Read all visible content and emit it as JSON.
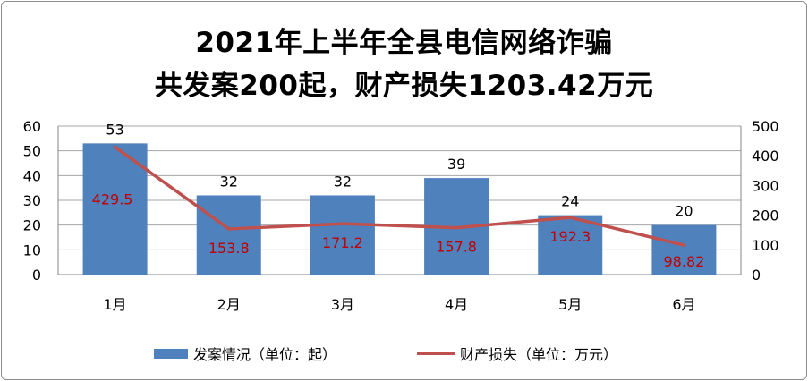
{
  "title_line1": "2021年上半年全县电信网络诈骗",
  "title_line2": "共发案200起，财产损失1203.42万元",
  "chart_data": {
    "type": "bar",
    "categories": [
      "1月",
      "2月",
      "3月",
      "4月",
      "5月",
      "6月"
    ],
    "series": [
      {
        "name": "发案情况（单位：起）",
        "type": "bar",
        "axis": "left",
        "values": [
          53,
          32,
          32,
          39,
          24,
          20
        ],
        "labels": [
          "53",
          "32",
          "32",
          "39",
          "24",
          "20"
        ],
        "color": "#4f81bd"
      },
      {
        "name": "财产损失（单位：万元）",
        "type": "line",
        "axis": "right",
        "values": [
          429.5,
          153.8,
          171.2,
          157.8,
          192.3,
          98.82
        ],
        "labels": [
          "429.5",
          "153.8",
          "171.2",
          "157.8",
          "192.3",
          "98.82"
        ],
        "color": "#c0504d"
      }
    ],
    "y_left": {
      "lim": [
        0,
        60
      ],
      "ticks": [
        "0",
        "10",
        "20",
        "30",
        "40",
        "50",
        "60"
      ]
    },
    "y_right": {
      "lim": [
        0,
        500
      ],
      "ticks": [
        "0",
        "100",
        "200",
        "300",
        "400",
        "500"
      ]
    },
    "grid": true,
    "legend_position": "bottom",
    "line_label_color": "#c00000"
  }
}
